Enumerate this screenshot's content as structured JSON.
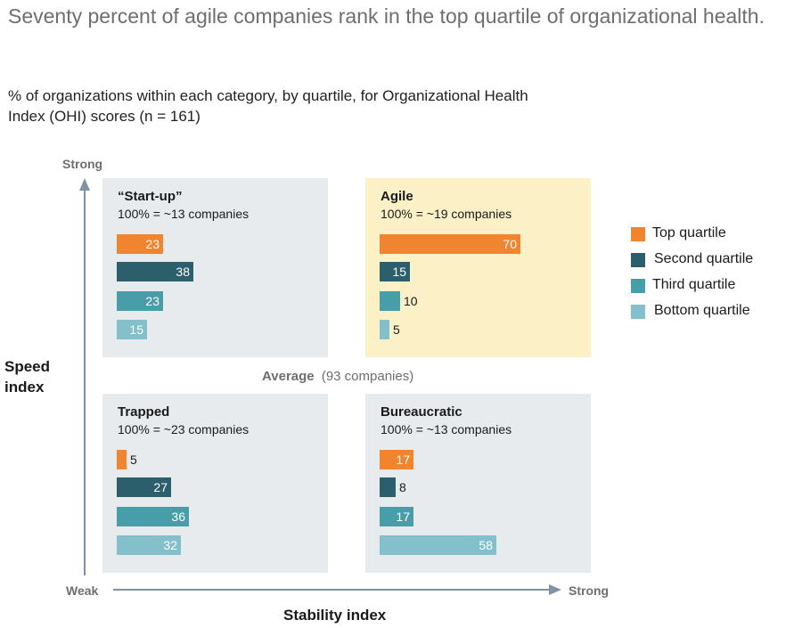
{
  "title": "Seventy percent of agile companies rank in the top quartile of organizational health.",
  "subtitle": "% of organizations within each category, by quartile, for Organizational Health Index (OHI) scores (n = 161)",
  "colors": {
    "top": "#f0842f",
    "second": "#2b5f6b",
    "third": "#479da8",
    "bottom": "#83c0cb",
    "quad_bg": "#e8ebee",
    "agile_bg": "#fbf0c6",
    "axis": "#7f93a5"
  },
  "axes": {
    "y_title": "Speed index",
    "x_title": "Stability index",
    "y_strong": "Strong",
    "x_strong": "Strong",
    "weak": "Weak",
    "average_label": "Average",
    "average_note": "(93 companies)"
  },
  "legend": [
    {
      "label": "Top quartile"
    },
    {
      "label": "Second quartile"
    },
    {
      "label": "Third quartile"
    },
    {
      "label": "Bottom quartile"
    }
  ],
  "chart_data": {
    "type": "bar",
    "title": "Seventy percent of agile companies rank in the top quartile of organizational health.",
    "xlabel": "Stability index",
    "ylabel": "Speed index",
    "categories": [
      "Top quartile",
      "Second quartile",
      "Third quartile",
      "Bottom quartile"
    ],
    "unit": "% of organizations",
    "quadrants": [
      {
        "name": "“Start-up”",
        "count_label": "100% = ~13 companies",
        "values": [
          23,
          38,
          23,
          15
        ]
      },
      {
        "name": "Agile",
        "count_label": "100% = ~19 companies",
        "values": [
          70,
          15,
          10,
          5
        ]
      },
      {
        "name": "Trapped",
        "count_label": "100% = ~23 companies",
        "values": [
          5,
          27,
          36,
          32
        ]
      },
      {
        "name": "Bureaucratic",
        "count_label": "100% = ~13 companies",
        "values": [
          17,
          8,
          17,
          58
        ]
      }
    ]
  }
}
